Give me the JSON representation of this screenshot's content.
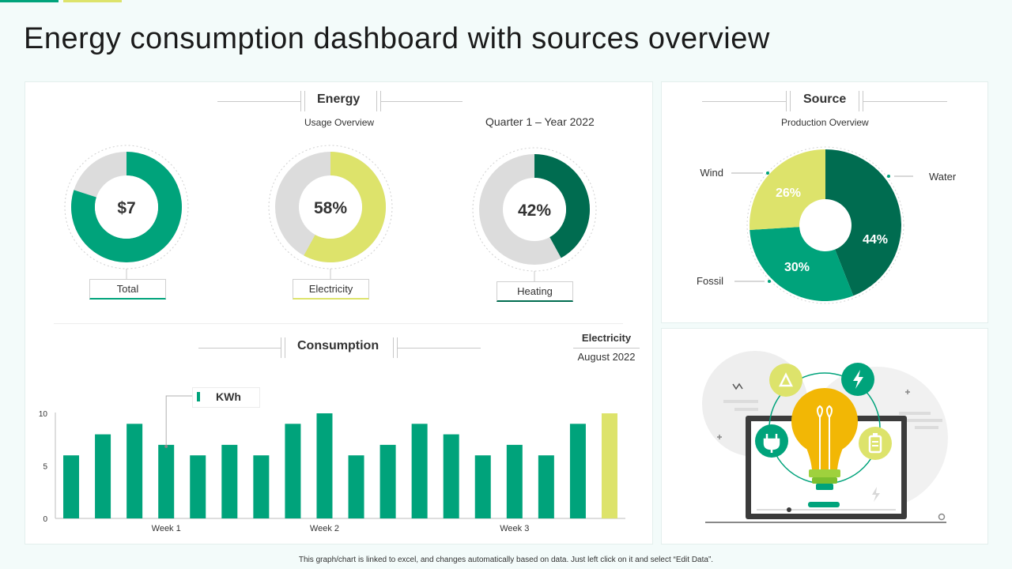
{
  "title": "Energy consumption dashboard with sources overview",
  "energy": {
    "heading": "Energy",
    "subheading": "Usage Overview",
    "period": "Quarter 1 – Year 2022",
    "rings": [
      {
        "value_text": "$7",
        "label": "Total",
        "fraction": 0.8,
        "color": "#00a37b"
      },
      {
        "value_text": "58%",
        "label": "Electricity",
        "fraction": 0.58,
        "color": "#dde36b"
      },
      {
        "value_text": "42%",
        "label": "Heating",
        "fraction": 0.42,
        "color": "#006c50"
      }
    ]
  },
  "source": {
    "heading": "Source",
    "subheading": "Production Overview"
  },
  "consumption": {
    "heading": "Consumption",
    "meta_title": "Electricity",
    "meta_date": "August 2022",
    "legend_label": "KWh"
  },
  "footnote": "This graph/chart is linked to excel, and changes automatically based on data. Just left click on it and select “Edit Data”.",
  "colors": {
    "green": "#00a37b",
    "dark_green": "#006c50",
    "lime": "#dde36b",
    "grey": "#dcdcdc"
  },
  "chart_data": [
    {
      "type": "pie",
      "title": "Source",
      "subtitle": "Production Overview",
      "categories": [
        "Water",
        "Fossil",
        "Wind"
      ],
      "values": [
        44,
        30,
        26
      ],
      "colors": [
        "#006c50",
        "#00a37b",
        "#dde36b"
      ],
      "labels": [
        "44%",
        "30%",
        "26%"
      ]
    },
    {
      "type": "bar",
      "title": "Consumption",
      "series": [
        {
          "name": "KWh",
          "values": [
            6,
            8,
            9,
            7,
            6,
            7,
            6,
            9,
            10,
            6,
            7,
            9,
            8,
            6,
            7,
            6,
            9,
            10
          ]
        }
      ],
      "highlight_index": 17,
      "ylim": [
        0,
        10
      ],
      "yticks": [
        0,
        5,
        10
      ],
      "xticks": [
        {
          "index": 3,
          "label": "Week 1"
        },
        {
          "index": 8,
          "label": "Week 2"
        },
        {
          "index": 14,
          "label": "Week 3"
        }
      ]
    }
  ]
}
